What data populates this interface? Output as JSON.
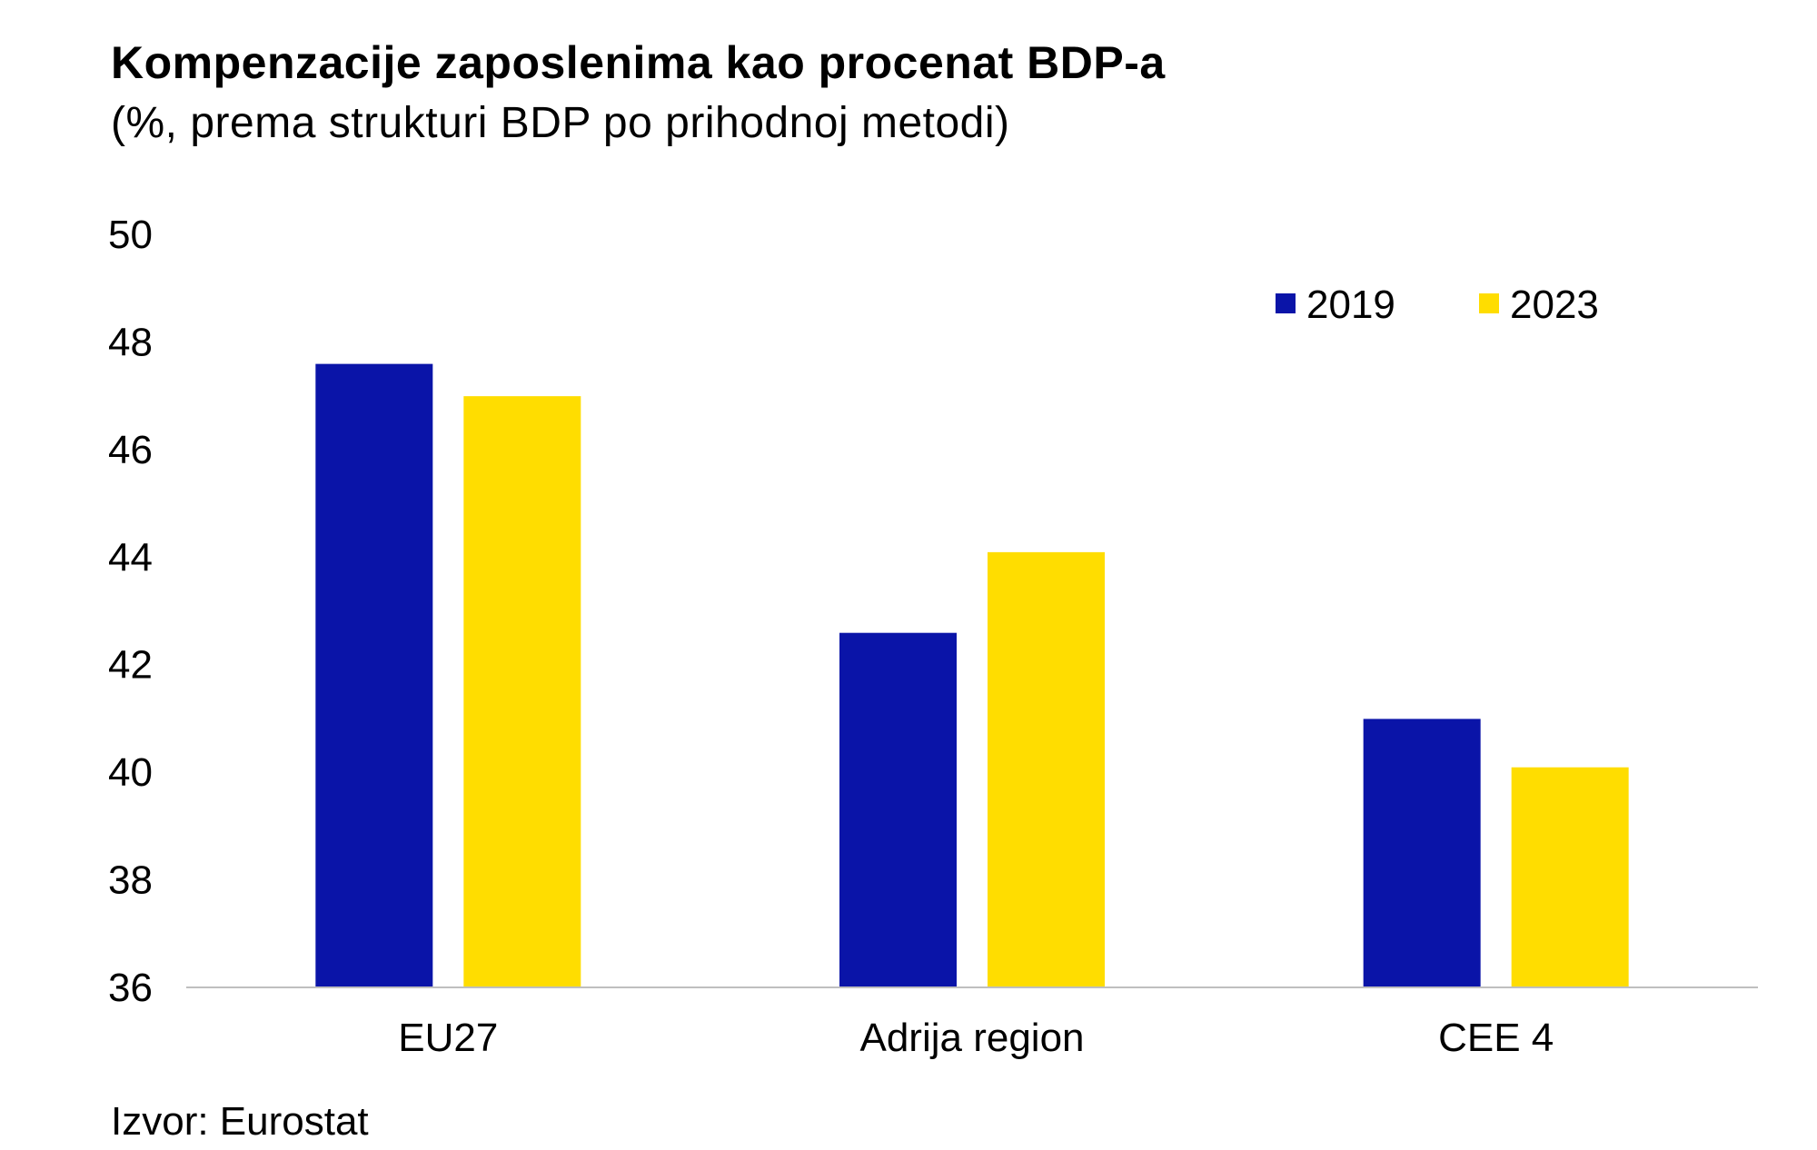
{
  "chart_data": {
    "type": "bar",
    "title": "Kompenzacije zaposlenima kao procenat BDP-a",
    "subtitle": "(%, prema strukturi BDP po prihodnoj metodi)",
    "categories": [
      "EU27",
      "Adrija region",
      "CEE 4"
    ],
    "series": [
      {
        "name": "2019",
        "values": [
          47.6,
          42.6,
          41.0
        ],
        "color": "#0a14a8"
      },
      {
        "name": "2023",
        "values": [
          47.0,
          44.1,
          40.1
        ],
        "color": "#ffdd00"
      }
    ],
    "ylim": [
      36,
      50
    ],
    "yticks": [
      36,
      38,
      40,
      42,
      44,
      46,
      48,
      50
    ],
    "xlabel": "",
    "ylabel": "",
    "grid": false,
    "legend_position": "top-right",
    "source": "Izvor: Eurostat"
  }
}
